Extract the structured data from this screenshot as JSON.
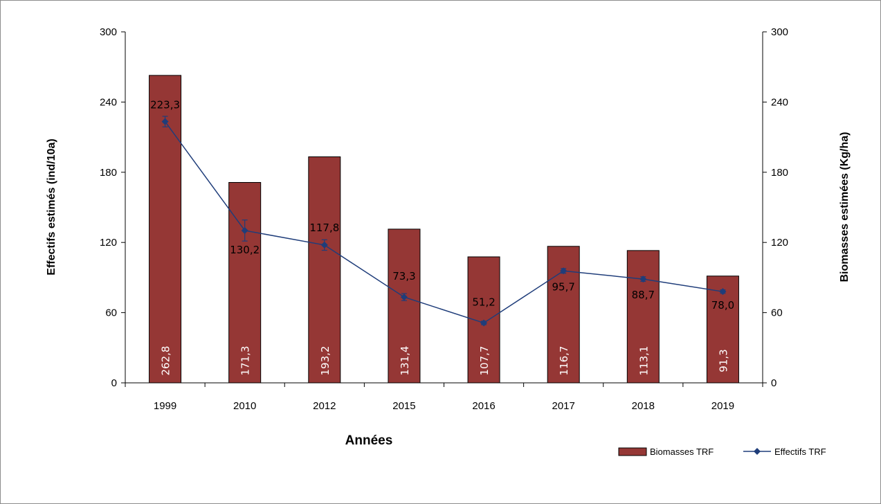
{
  "chart_data": {
    "type": "bar",
    "categories": [
      "1999",
      "2010",
      "2012",
      "2015",
      "2016",
      "2017",
      "2018",
      "2019"
    ],
    "series": [
      {
        "name": "Biomasses TRF",
        "type": "bar",
        "axis": "right",
        "color": "#953735",
        "values": [
          262.8,
          171.3,
          193.2,
          131.4,
          107.7,
          116.7,
          113.1,
          91.3
        ],
        "labels": [
          "262,8",
          "171,3",
          "193,2",
          "131,4",
          "107,7",
          "116,7",
          "113,1",
          "91,3"
        ]
      },
      {
        "name": "Effectifs TRF",
        "type": "line",
        "axis": "left",
        "color": "#1f3d7a",
        "values": [
          223.3,
          130.2,
          117.8,
          73.3,
          51.2,
          95.7,
          88.7,
          78.0
        ],
        "labels": [
          "223,3",
          "130,2",
          "117,8",
          "73,3",
          "51,2",
          "95,7",
          "88,7",
          "78,0"
        ],
        "error": [
          4.5,
          9.0,
          4.5,
          3.0,
          1.5,
          2.0,
          2.0,
          1.5
        ]
      }
    ],
    "xlabel": "Années",
    "ylabel_left": "Effectifs estimés (ind/10a)",
    "ylabel_right": "Biomasses estimées (Kg/ha)",
    "ylim_left": [
      0,
      300
    ],
    "ylim_right": [
      0,
      300
    ],
    "yticks_left": [
      "0",
      "60",
      "120",
      "180",
      "240",
      "300"
    ],
    "yticks_right": [
      "0",
      "60",
      "120",
      "180",
      "240",
      "300"
    ],
    "grid": false,
    "legend_position": "bottom-right"
  }
}
